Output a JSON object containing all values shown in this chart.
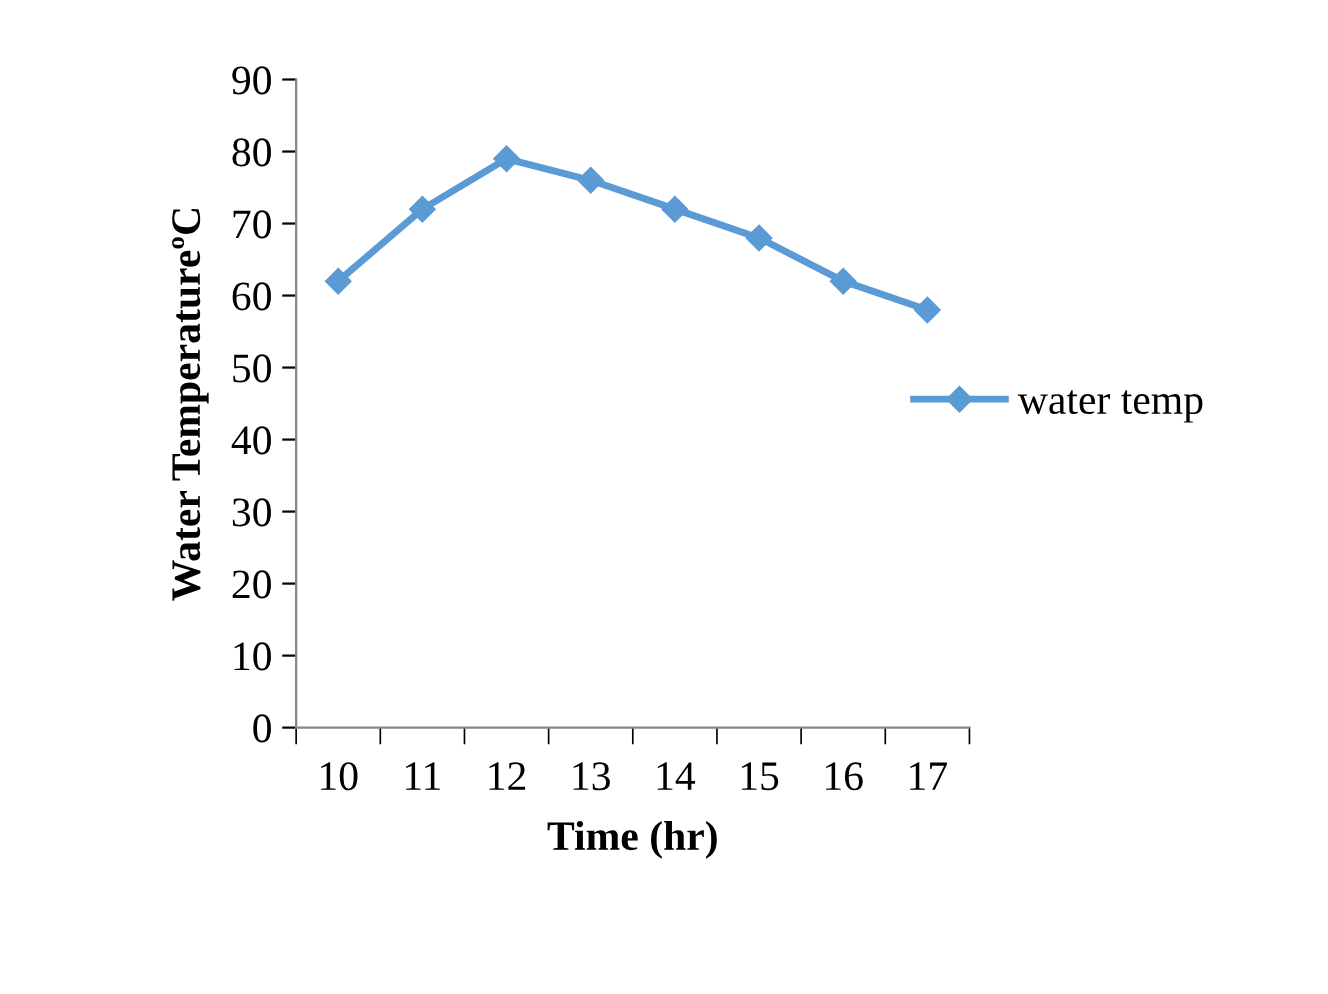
{
  "chart_data": {
    "type": "line",
    "xlabel": "Time (hr)",
    "ylabel": "Water TemperatureºC",
    "categories": [
      "10",
      "11",
      "12",
      "13",
      "14",
      "15",
      "16",
      "17"
    ],
    "series": [
      {
        "name": "water temp",
        "color": "#5b9bd5",
        "values": [
          62,
          72,
          79,
          76,
          72,
          68,
          62,
          58
        ]
      }
    ],
    "ylim": [
      0,
      90
    ],
    "yticks": [
      0,
      10,
      20,
      30,
      40,
      50,
      60,
      70,
      80,
      90
    ],
    "grid": false,
    "legend": "right",
    "marker": "diamond",
    "line_style": "solid"
  }
}
